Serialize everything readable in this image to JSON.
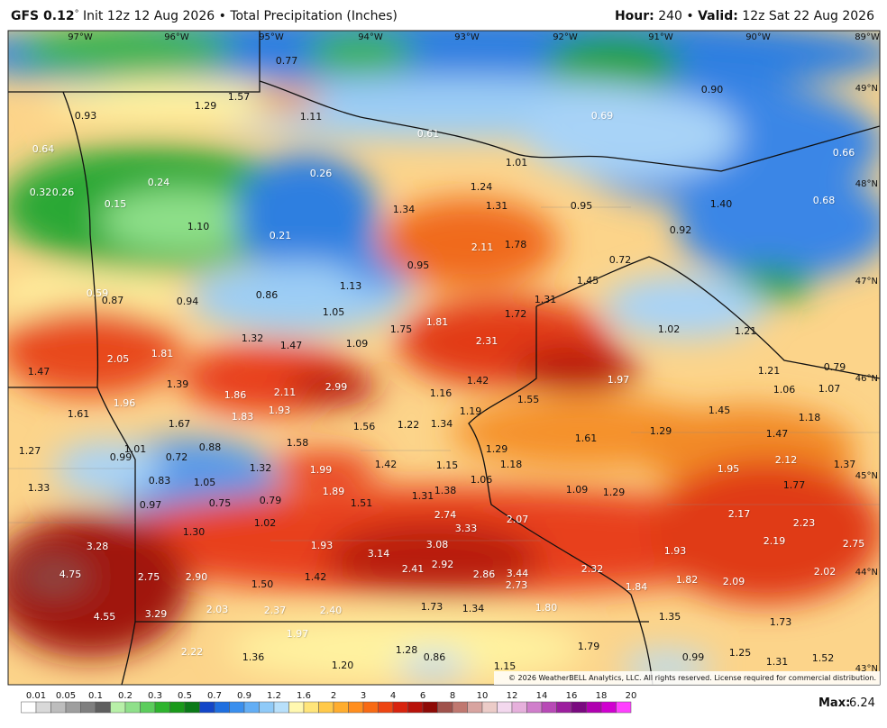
{
  "header": {
    "model": "GFS 0.12",
    "degree": "°",
    "init": "Init 12z 12 Aug 2026",
    "bullet": "•",
    "product": "Total Precipitation (Inches)",
    "hour_label": "Hour:",
    "hour": "240",
    "valid_label": "Valid:",
    "valid": "12z Sat 22 Aug 2026"
  },
  "map": {
    "longitudes": [
      "97°W",
      "96°W",
      "95°W",
      "94°W",
      "93°W",
      "92°W",
      "91°W",
      "90°W",
      "89°W"
    ],
    "latitudes": [
      "49°N",
      "48°N",
      "47°N",
      "46°N",
      "45°N",
      "44°N",
      "43°N"
    ],
    "labels": [
      "0.93",
      "1.29",
      "1.57",
      "0.77",
      "1.11",
      "0.61",
      "1.01",
      "0.69",
      "0.90",
      "0.64",
      "0.32",
      "0.26",
      "0.24",
      "0.26",
      "0.15",
      "1.10",
      "0.21",
      "1.24",
      "1.31",
      "1.34",
      "0.95",
      "1.40",
      "0.66",
      "0.68",
      "0.92",
      "2.11",
      "1.78",
      "0.95",
      "0.72",
      "1.45",
      "1.13",
      "0.59",
      "0.87",
      "0.94",
      "0.86",
      "1.31",
      "1.05",
      "1.72",
      "1.81",
      "1.75",
      "1.02",
      "1.21",
      "1.32",
      "1.47",
      "1.09",
      "2.31",
      "1.81",
      "2.05",
      "1.47",
      "1.21",
      "0.79",
      "1.39",
      "2.99",
      "2.11",
      "1.86",
      "1.42",
      "1.97",
      "1.16",
      "1.06",
      "1.07",
      "1.55",
      "1.96",
      "1.61",
      "1.83",
      "1.93",
      "1.67",
      "1.19",
      "1.45",
      "1.18",
      "1.56",
      "1.22",
      "1.34",
      "1.29",
      "1.47",
      "1.61",
      "1.58",
      "1.27",
      "1.01",
      "0.88",
      "0.99",
      "0.72",
      "1.29",
      "1.42",
      "1.15",
      "1.18",
      "1.32",
      "1.99",
      "1.95",
      "2.12",
      "1.37",
      "0.83",
      "1.05",
      "1.06",
      "1.33",
      "1.89",
      "1.31",
      "1.38",
      "1.09",
      "1.29",
      "1.77",
      "0.97",
      "0.75",
      "0.79",
      "1.51",
      "2.74",
      "2.07",
      "2.17",
      "2.23",
      "1.02",
      "3.33",
      "1.30",
      "2.19",
      "2.75",
      "3.28",
      "1.93",
      "3.08",
      "3.14",
      "1.93",
      "2.41",
      "2.92",
      "2.32",
      "2.02",
      "4.75",
      "2.75",
      "2.90",
      "1.42",
      "2.86",
      "3.44",
      "1.82",
      "2.09",
      "2.73",
      "1.50",
      "1.84",
      "1.73",
      "1.34",
      "1.80",
      "2.03",
      "2.37",
      "2.40",
      "3.29",
      "4.55",
      "1.35",
      "1.73",
      "1.97",
      "1.79",
      "2.22",
      "1.28",
      "1.36",
      "0.86",
      "0.99",
      "1.25",
      "1.31",
      "1.52",
      "1.20",
      "1.15"
    ],
    "copyright": "© 2026 WeatherBELL Analytics, LLC. All rights reserved. License required for commercial distribution."
  },
  "legend": {
    "ticks": [
      "0.01",
      "0.05",
      "0.1",
      "0.2",
      "0.3",
      "0.5",
      "0.7",
      "0.9",
      "1.2",
      "1.6",
      "2",
      "3",
      "4",
      "6",
      "8",
      "10",
      "12",
      "14",
      "16",
      "18",
      "20"
    ],
    "max_label": "Max:",
    "max": "6.24"
  }
}
